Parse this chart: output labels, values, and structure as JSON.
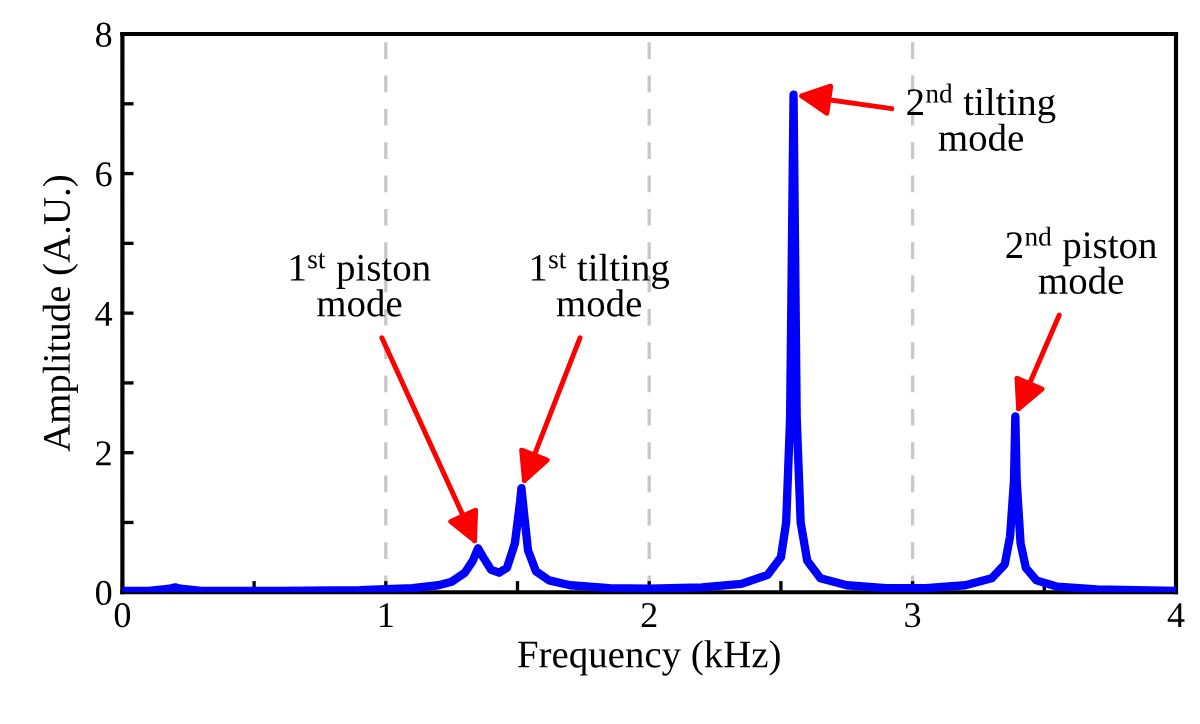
{
  "chart_data": {
    "type": "line",
    "xlabel": "Frequency (kHz)",
    "ylabel": "Amplitude (A.U.)",
    "x": [
      0,
      0.1,
      0.18,
      0.2,
      0.22,
      0.3,
      0.6,
      0.9,
      1.1,
      1.2,
      1.25,
      1.3,
      1.33,
      1.35,
      1.37,
      1.4,
      1.43,
      1.46,
      1.49,
      1.51,
      1.515,
      1.52,
      1.54,
      1.57,
      1.62,
      1.7,
      1.85,
      2.0,
      2.2,
      2.35,
      2.45,
      2.5,
      2.52,
      2.535,
      2.548,
      2.56,
      2.575,
      2.6,
      2.65,
      2.75,
      2.9,
      3.05,
      3.2,
      3.3,
      3.35,
      3.37,
      3.385,
      3.39,
      3.395,
      3.41,
      3.43,
      3.47,
      3.55,
      3.7,
      3.85,
      4.0
    ],
    "series": [
      {
        "color": "#0000ff",
        "values": [
          0.02,
          0.02,
          0.05,
          0.07,
          0.05,
          0.02,
          0.02,
          0.03,
          0.06,
          0.1,
          0.15,
          0.28,
          0.45,
          0.63,
          0.5,
          0.32,
          0.28,
          0.35,
          0.7,
          1.3,
          1.49,
          1.3,
          0.6,
          0.3,
          0.17,
          0.1,
          0.06,
          0.05,
          0.07,
          0.12,
          0.25,
          0.5,
          1.0,
          2.5,
          7.13,
          2.5,
          1.0,
          0.45,
          0.2,
          0.1,
          0.06,
          0.06,
          0.1,
          0.2,
          0.4,
          0.8,
          1.6,
          2.52,
          1.6,
          0.7,
          0.35,
          0.17,
          0.08,
          0.04,
          0.03,
          0.02
        ]
      }
    ],
    "xlim": [
      0,
      4
    ],
    "ylim": [
      0,
      8
    ],
    "xticks": [
      0,
      {
        "value": 0.5,
        "label": null
      },
      1,
      {
        "value": 1.5,
        "label": null
      },
      2,
      {
        "value": 2.5,
        "label": null
      },
      3,
      {
        "value": 3.5,
        "label": null
      },
      4
    ],
    "yticks": [
      0,
      {
        "value": 1,
        "label": null
      },
      2,
      {
        "value": 3,
        "label": null
      },
      4,
      {
        "value": 5,
        "label": null
      },
      6,
      {
        "value": 7,
        "label": null
      },
      8
    ],
    "grid": "x",
    "marker": "none",
    "line_style": "solid",
    "annotations": [
      {
        "text": "1$^{st}$ piston\nmode",
        "x": 1.35,
        "y": 0.63
      },
      {
        "text": "1$^{st}$ tilting\nmode",
        "x": 1.515,
        "y": 1.49
      },
      {
        "text": "2$^{nd}$ tilting\nmode",
        "x": 2.548,
        "y": 7.13
      },
      {
        "text": "2$^{nd}$ piston\nmode",
        "x": 3.39,
        "y": 2.52
      }
    ]
  }
}
